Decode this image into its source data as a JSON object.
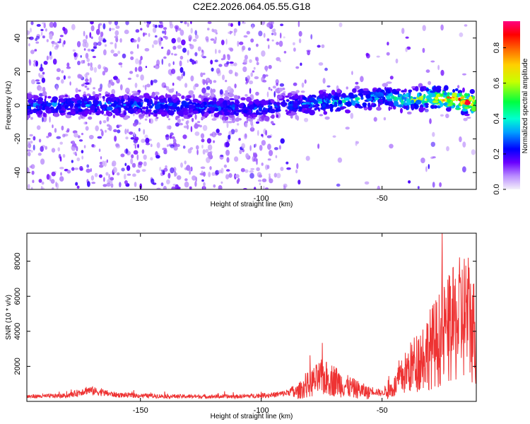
{
  "title": "C2E2.2026.064.05.55.G18",
  "chart_data": [
    {
      "type": "heatmap",
      "xlabel": "Height of straight line (km)",
      "ylabel": "Frequency (Hz)",
      "xlim": [
        -197,
        -11
      ],
      "ylim": [
        -50,
        50
      ],
      "xticks": [
        -150,
        -100,
        -50
      ],
      "xtick_labels": [
        "-150",
        "-100",
        "-50"
      ],
      "yticks": [
        -40,
        -20,
        0,
        20,
        40
      ],
      "ytick_labels": [
        "-40",
        "-20",
        "0",
        "20",
        "40"
      ],
      "colorbar": {
        "label": "Normalized spectral amplitude",
        "range": [
          0,
          0.95
        ],
        "ticks": [
          0.0,
          0.2,
          0.4,
          0.6,
          0.8
        ],
        "tick_labels": [
          "0.0",
          "0.2",
          "0.4",
          "0.6",
          "0.8"
        ],
        "colormap": [
          "#f0ecf8",
          "#6a00ff",
          "#0000ff",
          "#00c8ff",
          "#00ff40",
          "#ffff00",
          "#ff8000",
          "#ff0000",
          "#ff0080"
        ]
      },
      "ridge": {
        "x": [
          -197,
          -150,
          -100,
          -90,
          -70,
          -50,
          -40,
          -30,
          -20,
          -11
        ],
        "center_hz": [
          0,
          0,
          -2,
          0,
          2,
          5,
          3,
          5,
          3,
          1
        ],
        "peak_amplitude": [
          0.35,
          0.35,
          0.3,
          0.3,
          0.45,
          0.4,
          0.55,
          0.7,
          0.9,
          0.9
        ]
      },
      "noise_region_x": [
        -197,
        -90
      ]
    },
    {
      "type": "line",
      "xlabel": "Height of straight line (km)",
      "ylabel": "SNR (10 * v/v)",
      "xlim": [
        -197,
        -11
      ],
      "ylim": [
        0,
        9600
      ],
      "xticks": [
        -150,
        -100,
        -50
      ],
      "xtick_labels": [
        "-150",
        "-100",
        "-50"
      ],
      "yticks": [
        2000,
        4000,
        6000,
        8000
      ],
      "ytick_labels": [
        "2000",
        "4000",
        "6000",
        "8000"
      ],
      "line_color": "#ee3333",
      "envelope": {
        "x": [
          -197,
          -180,
          -172,
          -160,
          -150,
          -130,
          -110,
          -95,
          -90,
          -85,
          -80,
          -75,
          -70,
          -65,
          -60,
          -55,
          -50,
          -45,
          -40,
          -35,
          -30,
          -25,
          -20,
          -15,
          -11
        ],
        "y": [
          300,
          350,
          700,
          400,
          350,
          300,
          300,
          400,
          500,
          800,
          1500,
          2000,
          1800,
          1300,
          1000,
          700,
          500,
          1200,
          2500,
          3500,
          4500,
          5500,
          6500,
          7500,
          5500
        ]
      }
    }
  ]
}
